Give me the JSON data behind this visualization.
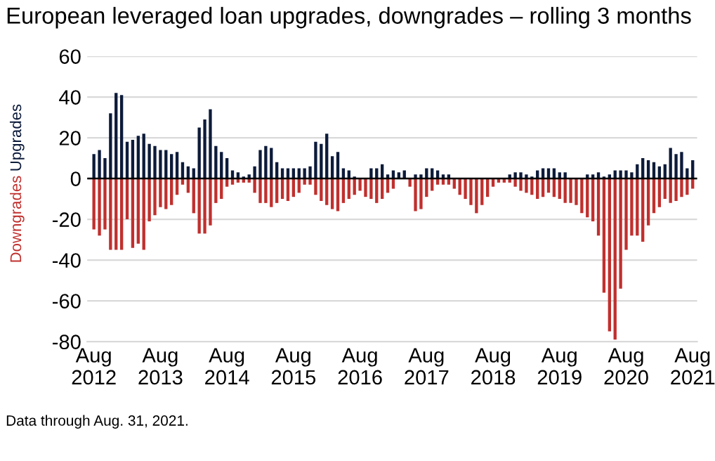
{
  "chart_data": {
    "type": "bar",
    "title": "European leveraged loan upgrades, downgrades – rolling 3 months",
    "categories": [
      "Aug\n2012",
      null,
      null,
      null,
      null,
      null,
      null,
      null,
      null,
      null,
      null,
      null,
      "Aug\n2013",
      null,
      null,
      null,
      null,
      null,
      null,
      null,
      null,
      null,
      null,
      null,
      "Aug\n2014",
      null,
      null,
      null,
      null,
      null,
      null,
      null,
      null,
      null,
      null,
      null,
      "Aug\n2015",
      null,
      null,
      null,
      null,
      null,
      null,
      null,
      null,
      null,
      null,
      null,
      "Aug\n2016",
      null,
      null,
      null,
      null,
      null,
      null,
      null,
      null,
      null,
      null,
      null,
      "Aug\n2017",
      null,
      null,
      null,
      null,
      null,
      null,
      null,
      null,
      null,
      null,
      null,
      "Aug\n2018",
      null,
      null,
      null,
      null,
      null,
      null,
      null,
      null,
      null,
      null,
      null,
      "Aug\n2019",
      null,
      null,
      null,
      null,
      null,
      null,
      null,
      null,
      null,
      null,
      null,
      "Aug\n2020",
      null,
      null,
      null,
      null,
      null,
      null,
      null,
      null,
      null,
      null,
      null,
      "Aug\n2021"
    ],
    "series": [
      {
        "name": "Upgrades",
        "color": "#0d1b3a",
        "values": [
          12,
          14,
          10,
          32,
          42,
          41,
          18,
          19,
          21,
          22,
          17,
          16,
          14,
          14,
          12,
          13,
          8,
          6,
          5,
          25,
          29,
          34,
          16,
          13,
          10,
          4,
          3,
          1,
          2,
          6,
          14,
          16,
          15,
          8,
          5,
          5,
          5,
          5,
          5,
          6,
          18,
          17,
          22,
          11,
          13,
          5,
          4,
          1,
          0,
          0,
          5,
          5,
          7,
          2,
          4,
          3,
          4,
          0,
          2,
          2,
          5,
          5,
          4,
          2,
          2,
          0,
          0,
          0,
          0,
          0,
          0,
          0,
          0,
          0,
          0,
          2,
          3,
          3,
          2,
          1,
          4,
          5,
          5,
          5,
          3,
          3,
          0,
          0,
          0,
          2,
          2,
          3,
          1,
          2,
          4,
          4,
          4,
          3,
          7,
          10,
          9,
          8,
          6,
          7,
          15,
          12,
          13,
          5,
          9
        ]
      },
      {
        "name": "Downgrades",
        "color": "#c0302e",
        "values": [
          -25,
          -28,
          -25,
          -35,
          -35,
          -35,
          -20,
          -34,
          -32,
          -35,
          -21,
          -18,
          -14,
          -15,
          -13,
          -8,
          -3,
          -7,
          -17,
          -27,
          -27,
          -23,
          -12,
          -10,
          -4,
          -3,
          -2,
          -2,
          -2,
          -7,
          -12,
          -12,
          -14,
          -12,
          -10,
          -11,
          -9,
          -7,
          -3,
          -3,
          -8,
          -11,
          -13,
          -15,
          -16,
          -12,
          -10,
          -8,
          -6,
          -9,
          -10,
          -12,
          -10,
          -7,
          -5,
          0,
          0,
          -4,
          -16,
          -15,
          -9,
          -6,
          -3,
          -3,
          -3,
          -5,
          -8,
          -10,
          -13,
          -17,
          -13,
          -9,
          -4,
          -2,
          -2,
          -2,
          -4,
          -6,
          -7,
          -8,
          -10,
          -9,
          -7,
          -9,
          -10,
          -12,
          -12,
          -13,
          -17,
          -19,
          -21,
          -28,
          -56,
          -75,
          -79,
          -54,
          -35,
          -28,
          -28,
          -31,
          -23,
          -17,
          -14,
          -10,
          -12,
          -11,
          -9,
          -8,
          -5
        ]
      }
    ],
    "stacked": true,
    "ylim": [
      -80,
      60
    ],
    "yticks": [
      -80,
      -60,
      -40,
      -20,
      0,
      20,
      40,
      60
    ],
    "grid": "y",
    "legend": false,
    "annotations": [
      "Data through Aug. 31, 2021."
    ]
  }
}
